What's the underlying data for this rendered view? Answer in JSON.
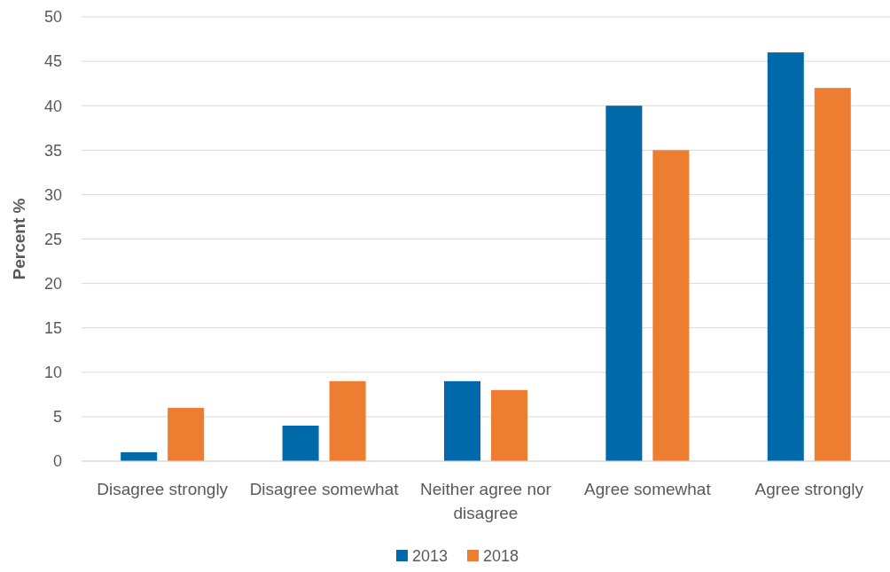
{
  "chart_data": {
    "type": "bar",
    "ylabel": "Percent %",
    "categories": [
      "Disagree strongly",
      "Disagree somewhat",
      "Neither agree nor disagree",
      "Agree somewhat",
      "Agree strongly"
    ],
    "series": [
      {
        "name": "2013",
        "color": "#0069aa",
        "values": [
          1,
          4,
          9,
          40,
          46
        ]
      },
      {
        "name": "2018",
        "color": "#ed7d31",
        "values": [
          6,
          9,
          8,
          35,
          42
        ]
      }
    ],
    "ylim": [
      0,
      50
    ],
    "yticks": [
      0,
      5,
      10,
      15,
      20,
      25,
      30,
      35,
      40,
      45,
      50
    ],
    "grid": "y",
    "legend": "bottom"
  }
}
